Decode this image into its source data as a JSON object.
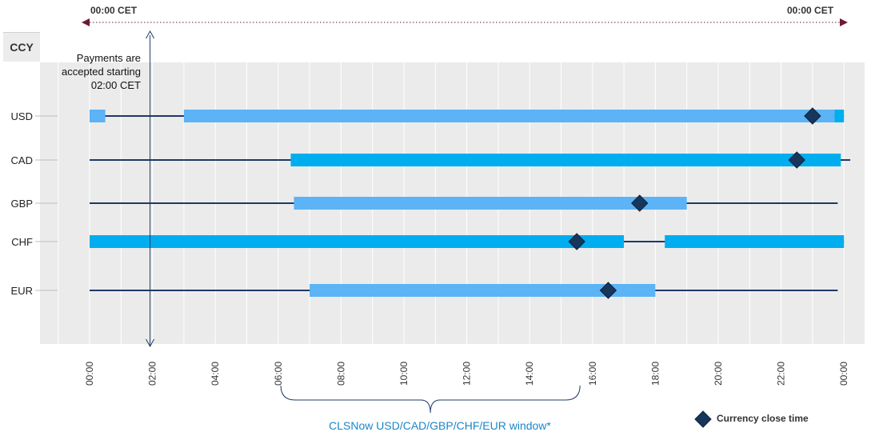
{
  "header": {
    "start_label": "00:00 CET",
    "end_label": "00:00 CET"
  },
  "ccy_header": "CCY",
  "note": "Payments are accepted starting 02:00 CET",
  "window_label": "CLSNow USD/CAD/GBP/CHF/EUR window*",
  "legend": {
    "marker_label": "Currency close time"
  },
  "colors": {
    "bar_light": "#5cb3f5",
    "bar_bright": "#00aeef",
    "line": "#1f3864",
    "marker": "#16365c",
    "brace": "#1f3864",
    "arrow": "#6b1a3a",
    "plot_bg": "#ebebeb"
  },
  "chart_data": {
    "type": "gantt",
    "x_unit": "hour (CET)",
    "x_range": [
      0,
      24
    ],
    "tick_labels": [
      "00:00",
      "02:00",
      "04:00",
      "06:00",
      "08:00",
      "10:00",
      "12:00",
      "14:00",
      "16:00",
      "18:00",
      "20:00",
      "22:00",
      "00:00"
    ],
    "payment_accept_start": 2,
    "window_brace": [
      7,
      15.5
    ],
    "rows": [
      {
        "ccy": "USD",
        "line": [
          0,
          24
        ],
        "bars": [
          [
            0,
            0.5
          ],
          [
            3,
            23.7
          ],
          [
            23.7,
            24
          ]
        ],
        "close": 23.0,
        "color": "light"
      },
      {
        "ccy": "CAD",
        "line": [
          0,
          24.2
        ],
        "bars": [
          [
            6.4,
            23.9
          ]
        ],
        "close": 22.5,
        "color": "bright"
      },
      {
        "ccy": "GBP",
        "line": [
          0,
          23.8
        ],
        "bars": [
          [
            6.5,
            19.0
          ]
        ],
        "close": 17.5,
        "color": "light"
      },
      {
        "ccy": "CHF",
        "line": [
          0,
          24
        ],
        "bars": [
          [
            0,
            17.0
          ],
          [
            18.3,
            24
          ]
        ],
        "close": 15.5,
        "color": "bright"
      },
      {
        "ccy": "EUR",
        "line": [
          0,
          23.8
        ],
        "bars": [
          [
            7.0,
            18.0
          ]
        ],
        "close": 16.5,
        "color": "light"
      }
    ]
  }
}
